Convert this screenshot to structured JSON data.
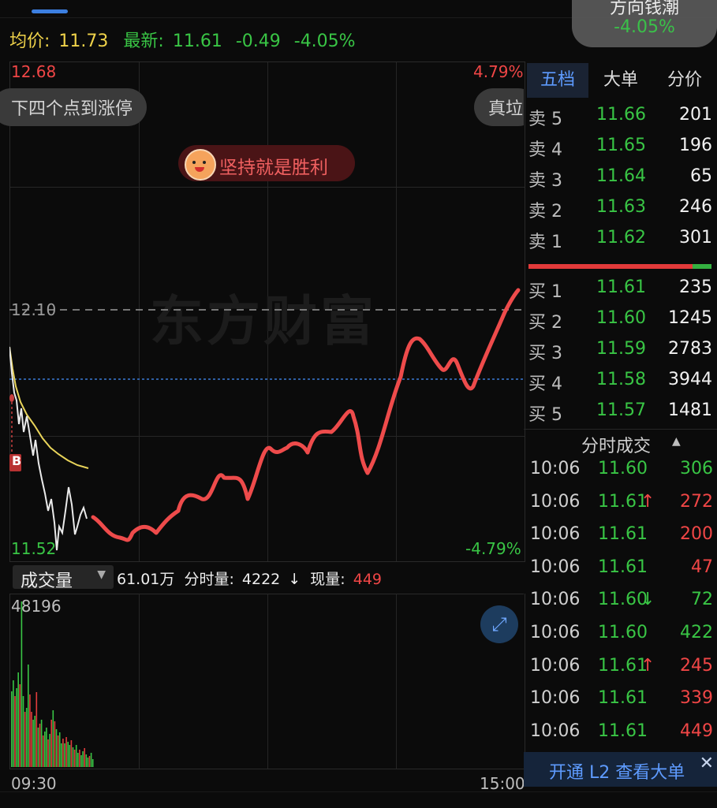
{
  "info_row": {
    "avg_label": "均价:",
    "avg_value": "11.73",
    "latest_label": "最新:",
    "latest_value": "11.61",
    "change": "-0.49",
    "change_pct": "-4.05%"
  },
  "floating_bubble": {
    "title": "方向钱潮",
    "pct": "-4.05%"
  },
  "chart": {
    "price_high": "12.68",
    "price_low": "11.52",
    "pct_high": "4.79%",
    "pct_low": "-4.79%",
    "prev_close": "12.10",
    "pill_left": "下四个点到涨停",
    "pill_right": "真垃",
    "pill_center": "坚持就是胜利",
    "watermark": "东方财富",
    "marker": "B"
  },
  "volume": {
    "selector": "成交量",
    "total": "61.01万",
    "minute_label": "分时量:",
    "minute_value": "4222",
    "minute_dir": "↓",
    "current_label": "现量:",
    "current_value": "449",
    "max_label": "48196"
  },
  "time_axis": {
    "start": "09:30",
    "end": "15:00"
  },
  "tabs": [
    {
      "label": "五档",
      "active": true
    },
    {
      "label": "大单",
      "active": false
    },
    {
      "label": "分价",
      "active": false
    }
  ],
  "asks": [
    {
      "label": "卖 5",
      "price": "11.66",
      "vol": "201"
    },
    {
      "label": "卖 4",
      "price": "11.65",
      "vol": "196"
    },
    {
      "label": "卖 3",
      "price": "11.64",
      "vol": "65"
    },
    {
      "label": "卖 2",
      "price": "11.63",
      "vol": "246"
    },
    {
      "label": "卖 1",
      "price": "11.62",
      "vol": "301"
    }
  ],
  "bids": [
    {
      "label": "买 1",
      "price": "11.61",
      "vol": "235"
    },
    {
      "label": "买 2",
      "price": "11.60",
      "vol": "1245"
    },
    {
      "label": "买 3",
      "price": "11.59",
      "vol": "2783"
    },
    {
      "label": "买 4",
      "price": "11.58",
      "vol": "3944"
    },
    {
      "label": "买 5",
      "price": "11.57",
      "vol": "1481"
    }
  ],
  "ticks_title": "分时成交",
  "ticks_title_icon": "caret-up-icon",
  "ticks": [
    {
      "time": "10:06",
      "price": "11.60",
      "arrow": "",
      "vol": "306",
      "price_color": "#39c545",
      "vol_color": "#39c545"
    },
    {
      "time": "10:06",
      "price": "11.61",
      "arrow": "↑",
      "vol": "272",
      "price_color": "#39c545",
      "vol_color": "#f04646"
    },
    {
      "time": "10:06",
      "price": "11.61",
      "arrow": "",
      "vol": "200",
      "price_color": "#39c545",
      "vol_color": "#f04646"
    },
    {
      "time": "10:06",
      "price": "11.61",
      "arrow": "",
      "vol": "47",
      "price_color": "#39c545",
      "vol_color": "#f04646"
    },
    {
      "time": "10:06",
      "price": "11.60",
      "arrow": "↓",
      "vol": "72",
      "price_color": "#39c545",
      "vol_color": "#39c545"
    },
    {
      "time": "10:06",
      "price": "11.60",
      "arrow": "",
      "vol": "422",
      "price_color": "#39c545",
      "vol_color": "#39c545"
    },
    {
      "time": "10:06",
      "price": "11.61",
      "arrow": "↑",
      "vol": "245",
      "price_color": "#39c545",
      "vol_color": "#f04646"
    },
    {
      "time": "10:06",
      "price": "11.61",
      "arrow": "",
      "vol": "339",
      "price_color": "#39c545",
      "vol_color": "#f04646"
    },
    {
      "time": "10:06",
      "price": "11.61",
      "arrow": "",
      "vol": "449",
      "price_color": "#39c545",
      "vol_color": "#f04646"
    }
  ],
  "l2_banner": "开通 L2 查看大单",
  "colors": {
    "up": "#f04646",
    "down": "#39c545",
    "avg": "#f0d34a",
    "accent": "#5e9bff"
  }
}
